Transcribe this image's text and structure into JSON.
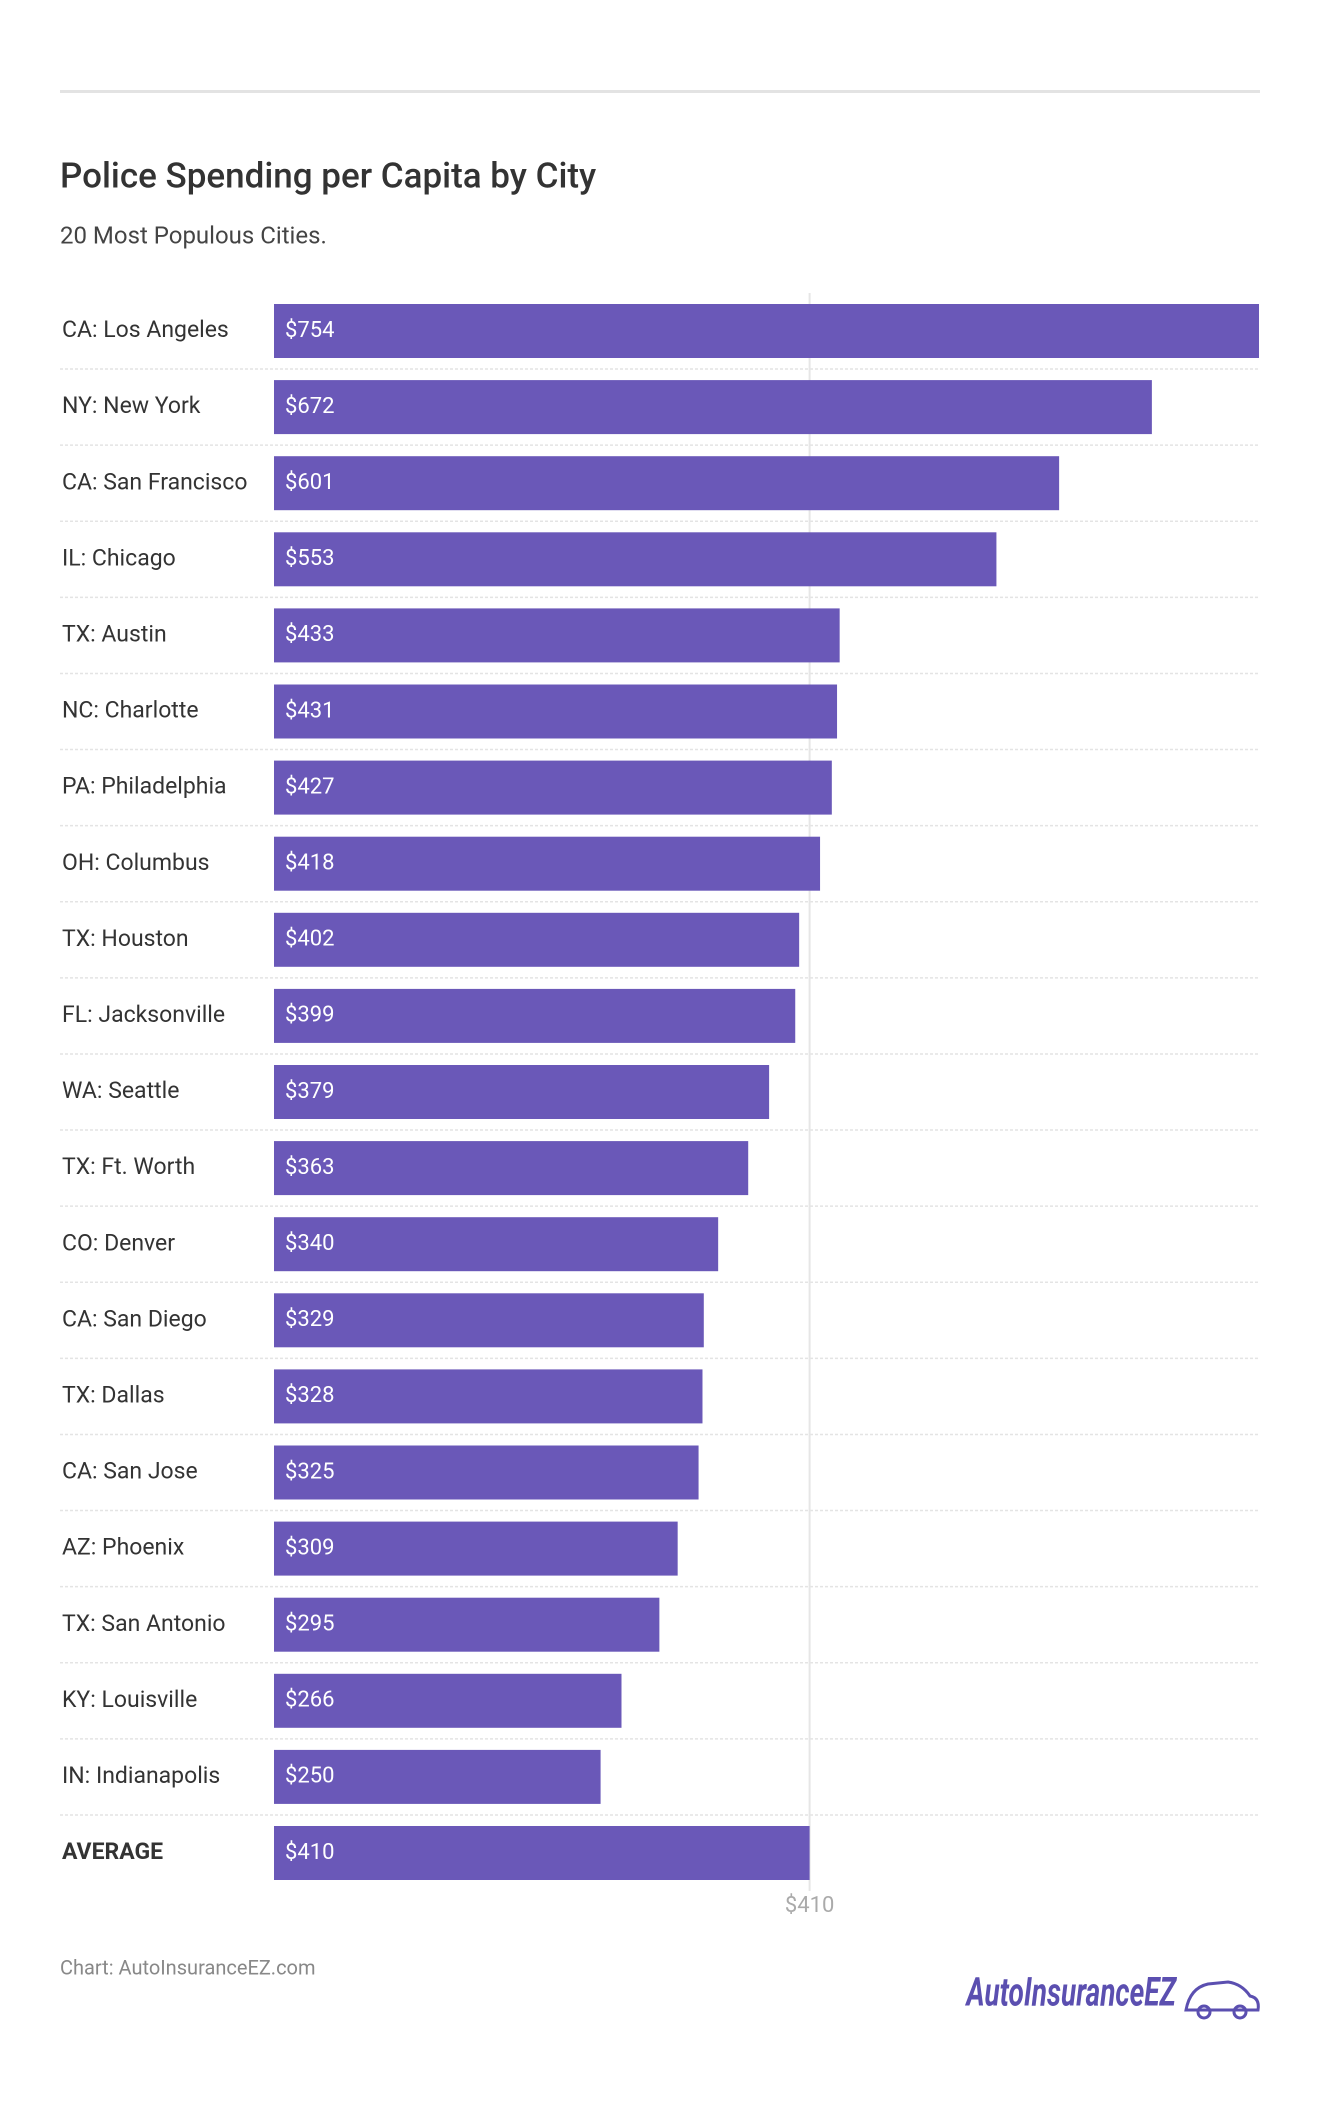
{
  "chart_data": {
    "type": "bar",
    "orientation": "horizontal",
    "title": "Police Spending per Capita by City",
    "subtitle": "20 Most Populous Cities.",
    "categories": [
      "CA: Los Angeles",
      "NY: New York",
      "CA: San Francisco",
      "IL: Chicago",
      "TX: Austin",
      "NC: Charlotte",
      "PA: Philadelphia",
      "OH: Columbus",
      "TX: Houston",
      "FL: Jacksonville",
      "WA: Seattle",
      "TX: Ft. Worth",
      "CO: Denver",
      "CA: San Diego",
      "TX: Dallas",
      "CA: San Jose",
      "AZ: Phoenix",
      "TX: San Antonio",
      "KY: Louisville",
      "IN: Indianapolis",
      "AVERAGE"
    ],
    "values": [
      754,
      672,
      601,
      553,
      433,
      431,
      427,
      418,
      402,
      399,
      379,
      363,
      340,
      329,
      328,
      325,
      309,
      295,
      266,
      250,
      410
    ],
    "value_labels": [
      "$754",
      "$672",
      "$601",
      "$553",
      "$433",
      "$431",
      "$427",
      "$418",
      "$402",
      "$399",
      "$379",
      "$363",
      "$340",
      "$329",
      "$328",
      "$325",
      "$309",
      "$295",
      "$266",
      "$250",
      "$410"
    ],
    "color": "#6a58b8",
    "xlim": [
      0,
      754
    ],
    "xticks": [
      {
        "value": 410,
        "label": "$410"
      }
    ],
    "grid": true,
    "source": "Chart: AutoInsuranceEZ.com",
    "logo": "AutoInsuranceEZ"
  }
}
